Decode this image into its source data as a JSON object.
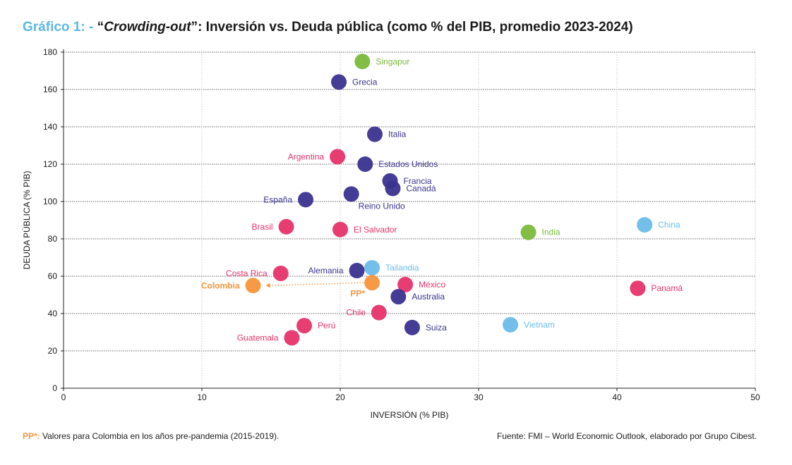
{
  "title": {
    "prefix": "Gráfico 1: -",
    "quote_open": "“",
    "italic": "Crowding-out",
    "rest": "”: Inversión vs. Deuda pública (como % del PIB, promedio 2023-2024)"
  },
  "colors": {
    "latam": "#e6336a",
    "advanced": "#3b338f",
    "asia": "#6dbce8",
    "green": "#7bb93c",
    "colombia": "#f7953c"
  },
  "chart_data": {
    "type": "scatter",
    "xlabel": "INVERSIÓN (% PIB)",
    "ylabel": "DEUDA PÚBLICA (% PIB)",
    "xlim": [
      0,
      50
    ],
    "ylim": [
      0,
      180
    ],
    "xticks": [
      0,
      10,
      20,
      30,
      40,
      50
    ],
    "yticks": [
      0,
      20,
      40,
      60,
      80,
      100,
      120,
      140,
      160,
      180
    ],
    "grid": "horizontal",
    "points": [
      {
        "label": "Singapur",
        "x": 21.6,
        "y": 175,
        "group": "green",
        "label_pos": "right"
      },
      {
        "label": "Grecia",
        "x": 19.9,
        "y": 164,
        "group": "advanced",
        "label_pos": "right"
      },
      {
        "label": "Italia",
        "x": 22.5,
        "y": 136,
        "group": "advanced",
        "label_pos": "right"
      },
      {
        "label": "Argentina",
        "x": 19.8,
        "y": 124,
        "group": "latam",
        "label_pos": "left"
      },
      {
        "label": "Estados Unidos",
        "x": 21.8,
        "y": 120,
        "group": "advanced",
        "label_pos": "right"
      },
      {
        "label": "Francia",
        "x": 23.6,
        "y": 111,
        "group": "advanced",
        "label_pos": "right"
      },
      {
        "label": "Canadá",
        "x": 23.8,
        "y": 107,
        "group": "advanced",
        "label_pos": "right"
      },
      {
        "label": "Reino Unido",
        "x": 20.8,
        "y": 104,
        "group": "advanced",
        "label_pos": "below-right"
      },
      {
        "label": "España",
        "x": 17.5,
        "y": 101,
        "group": "advanced",
        "label_pos": "left"
      },
      {
        "label": "Brasil",
        "x": 16.1,
        "y": 86.5,
        "group": "latam",
        "label_pos": "left"
      },
      {
        "label": "El Salvador",
        "x": 20.0,
        "y": 85,
        "group": "latam",
        "label_pos": "right"
      },
      {
        "label": "India",
        "x": 33.6,
        "y": 83.5,
        "group": "green",
        "label_pos": "right"
      },
      {
        "label": "China",
        "x": 42.0,
        "y": 87.5,
        "group": "asia",
        "label_pos": "right"
      },
      {
        "label": "Costa Rica",
        "x": 15.7,
        "y": 61.5,
        "group": "latam",
        "label_pos": "left"
      },
      {
        "label": "Alemania",
        "x": 21.2,
        "y": 63,
        "group": "advanced",
        "label_pos": "left"
      },
      {
        "label": "Tailandia",
        "x": 22.3,
        "y": 64.5,
        "group": "asia",
        "label_pos": "right"
      },
      {
        "label": "PP*",
        "x": 22.3,
        "y": 56.5,
        "group": "colombia",
        "label_pos": "below-left",
        "bold": true
      },
      {
        "label": "Colombia",
        "x": 13.7,
        "y": 55,
        "group": "colombia",
        "label_pos": "left",
        "bold": true
      },
      {
        "label": "México",
        "x": 24.7,
        "y": 55.5,
        "group": "latam",
        "label_pos": "right"
      },
      {
        "label": "Panamá",
        "x": 41.5,
        "y": 53.5,
        "group": "latam",
        "label_pos": "right"
      },
      {
        "label": "Australia",
        "x": 24.2,
        "y": 49,
        "group": "advanced",
        "label_pos": "right"
      },
      {
        "label": "Chile",
        "x": 22.8,
        "y": 40.5,
        "group": "latam",
        "label_pos": "left"
      },
      {
        "label": "Perú",
        "x": 17.4,
        "y": 33.5,
        "group": "latam",
        "label_pos": "right"
      },
      {
        "label": "Guatemala",
        "x": 16.5,
        "y": 27,
        "group": "latam",
        "label_pos": "left"
      },
      {
        "label": "Suiza",
        "x": 25.2,
        "y": 32.5,
        "group": "advanced",
        "label_pos": "right"
      },
      {
        "label": "Vietnam",
        "x": 32.3,
        "y": 34,
        "group": "asia",
        "label_pos": "right"
      }
    ],
    "arrow": {
      "from_label": "PP*",
      "to_label": "Colombia"
    }
  },
  "footnote": {
    "pp_label": "PP*:",
    "text": " Valores para Colombia en los años pre-pandemia (2015-2019)."
  },
  "source": "Fuente: FMI – World Economic Outlook, elaborado por Grupo Cibest."
}
